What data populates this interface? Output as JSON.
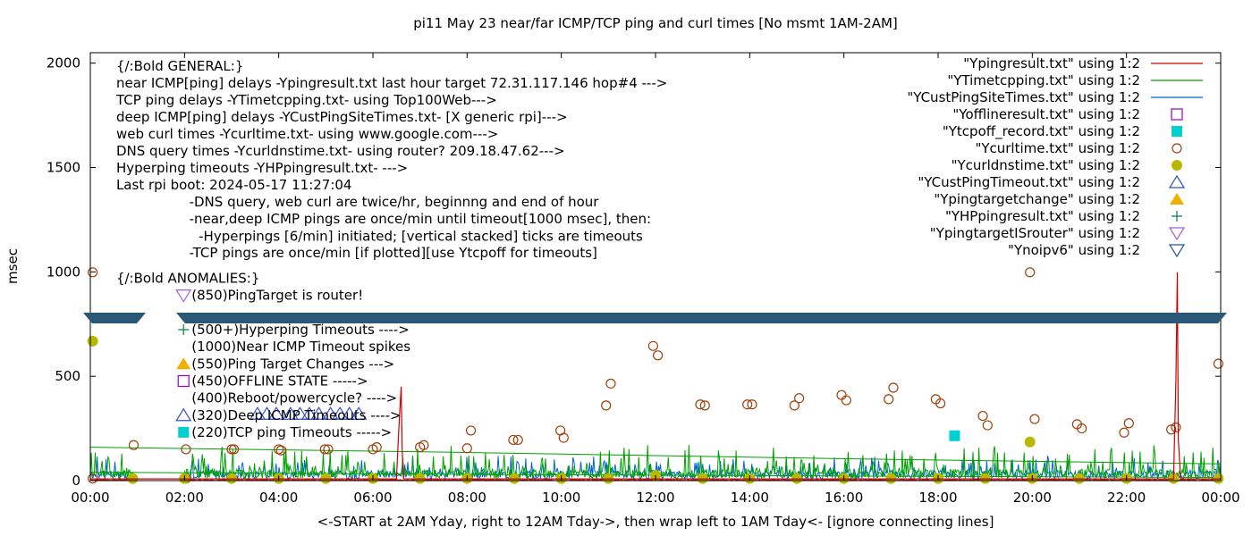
{
  "chart_data": {
    "type": "line",
    "title": "pi11 May 23  near/far ICMP/TCP ping and curl times [No msmt 1AM-2AM]",
    "xlabel": "<-START at 2AM Yday, right to 12AM Tday->, then wrap left to 1AM Tday<- [ignore connecting lines]",
    "ylabel": "msec",
    "xlim": [
      0,
      24
    ],
    "ylim": [
      0,
      2050
    ],
    "x_ticks": [
      0,
      2,
      4,
      6,
      8,
      10,
      12,
      14,
      16,
      18,
      20,
      22,
      24
    ],
    "x_tick_labels": [
      "00:00",
      "02:00",
      "04:00",
      "06:00",
      "08:00",
      "10:00",
      "12:00",
      "14:00",
      "16:00",
      "18:00",
      "20:00",
      "22:00",
      "00:00"
    ],
    "y_ticks": [
      0,
      500,
      1000,
      1500,
      2000
    ],
    "y_tick_labels": [
      "0",
      "500",
      "1000",
      "1500",
      "2000"
    ],
    "grid": false,
    "legend_position": "top-right",
    "legend": [
      {
        "label": "\"Ypingresult.txt\" using 1:2",
        "marker": "line",
        "color": "#cc0000"
      },
      {
        "label": "\"YTimetcpping.txt\" using 1:2",
        "marker": "line",
        "color": "#00a000"
      },
      {
        "label": "\"YCustPingSiteTimes.txt\" using 1:2",
        "marker": "line",
        "color": "#0066cc"
      },
      {
        "label": "\"Yofflineresult.txt\" using 1:2",
        "marker": "square-open",
        "color": "#9400d3"
      },
      {
        "label": "\"Ytcpoff_record.txt\" using 1:2",
        "marker": "square-filled",
        "color": "#00d0d0"
      },
      {
        "label": "\"Ycurltime.txt\" using 1:2",
        "marker": "circle-open",
        "color": "#a0400a"
      },
      {
        "label": "\"Ycurldnstime.txt\" using 1:2",
        "marker": "circle-filled",
        "color": "#b8b800"
      },
      {
        "label": "\"YCustPingTimeout.txt\" using 1:2",
        "marker": "triangle-up-open",
        "color": "#3050c8"
      },
      {
        "label": "\"Ypingtargetchange\" using 1:2",
        "marker": "triangle-up-filled",
        "color": "#f0b000"
      },
      {
        "label": "\"YHPpingresult.txt\" using 1:2",
        "marker": "plus",
        "color": "#008040"
      },
      {
        "label": "\"YpingtargetISrouter\" using 1:2",
        "marker": "triangle-down-open",
        "color": "#a060e0"
      },
      {
        "label": "\"Ynoipv6\" using 1:2",
        "marker": "triangle-down-open",
        "color": "#2050a0"
      }
    ],
    "annotations": [
      {
        "text": "{/:Bold GENERAL:}",
        "x": 0.55,
        "y": 1965
      },
      {
        "text": "near ICMP[ping] delays -Ypingresult.txt last hour target 72.31.117.146 hop#4 --->",
        "x": 0.55,
        "y": 1884
      },
      {
        "text": "TCP ping delays -YTimetcpping.txt- using Top100Web--->",
        "x": 0.55,
        "y": 1802
      },
      {
        "text": "deep ICMP[ping] delays -YCustPingSiteTimes.txt- [X generic rpi]--->",
        "x": 0.55,
        "y": 1721
      },
      {
        "text": "web curl times -Ycurltime.txt- using www.google.com--->",
        "x": 0.55,
        "y": 1639
      },
      {
        "text": "DNS query times -Ycurldnstime.txt- using router? 209.18.47.62--->",
        "x": 0.55,
        "y": 1558
      },
      {
        "text": "Hyperping timeouts -YHPpingresult.txt- --->",
        "x": 0.55,
        "y": 1476
      },
      {
        "text": "Last rpi boot: 2024-05-17 11:27:04",
        "x": 0.55,
        "y": 1395
      },
      {
        "text": "-DNS query, web curl are twice/hr, beginnng and end of hour",
        "x": 2.1,
        "y": 1313
      },
      {
        "text": "-near,deep ICMP pings are once/min until timeout[1000 msec], then:",
        "x": 2.1,
        "y": 1232
      },
      {
        "text": "-Hyperpings [6/min] initiated; [vertical stacked] ticks are timeouts",
        "x": 2.3,
        "y": 1150
      },
      {
        "text": "-TCP pings are once/min [if plotted][use Ytcpoff for timeouts]",
        "x": 2.1,
        "y": 1069
      },
      {
        "text": "{/:Bold ANOMALIES:}",
        "x": 0.55,
        "y": 948
      },
      {
        "text": "(850)PingTarget is router!",
        "x": 2.15,
        "y": 866,
        "marker": "triangle-down-open",
        "marker_color": "#a060e0"
      },
      {
        "text": "(500+)Hyperping Timeouts ---->",
        "x": 2.15,
        "y": 702,
        "marker": "plus",
        "marker_color": "#008040"
      },
      {
        "text": "(1000)Near ICMP Timeout spikes",
        "x": 2.15,
        "y": 620
      },
      {
        "text": "(550)Ping Target Changes --->",
        "x": 2.15,
        "y": 538,
        "marker": "triangle-up-filled",
        "marker_color": "#f0b000"
      },
      {
        "text": "(450)OFFLINE STATE ----->",
        "x": 2.15,
        "y": 456,
        "marker": "square-open",
        "marker_color": "#9400d3"
      },
      {
        "text": "(400)Reboot/powercycle? ---->",
        "x": 2.15,
        "y": 374
      },
      {
        "text": "(320)Deep ICMP Timeouts ---->",
        "x": 2.15,
        "y": 292,
        "marker": "triangle-up-open",
        "marker_color": "#3050c8"
      },
      {
        "text": "(220)TCP ping Timeouts ----->",
        "x": 2.15,
        "y": 210,
        "marker": "square-filled",
        "marker_color": "#00d0d0"
      }
    ],
    "series": [
      {
        "name": "\"Ycurltime.txt\" using 1:2",
        "marker": "circle-open",
        "color": "#a0400a",
        "x": [
          0.05,
          0.05,
          0.92,
          2.03,
          2.03,
          3.0,
          3.05,
          4.0,
          4.05,
          4.98,
          5.05,
          6.0,
          6.08,
          7.0,
          7.08,
          8.0,
          8.08,
          8.98,
          9.08,
          9.98,
          10.05,
          10.95,
          11.05,
          11.95,
          12.05,
          12.95,
          13.05,
          13.95,
          14.05,
          14.95,
          15.05,
          15.95,
          16.05,
          16.95,
          17.05,
          17.95,
          18.05,
          18.95,
          19.05,
          19.95,
          20.05,
          20.95,
          21.05,
          21.95,
          22.05,
          22.95,
          23.05,
          23.95
        ],
        "y": [
          998,
          10,
          170,
          10,
          150,
          150,
          150,
          150,
          145,
          150,
          150,
          150,
          160,
          160,
          170,
          155,
          240,
          195,
          195,
          240,
          205,
          360,
          465,
          645,
          600,
          365,
          360,
          365,
          365,
          360,
          395,
          410,
          385,
          390,
          445,
          390,
          370,
          310,
          265,
          998,
          295,
          270,
          250,
          230,
          275,
          245,
          255,
          560
        ]
      },
      {
        "name": "\"Ycurldnstime.txt\" using 1:2",
        "marker": "circle-filled",
        "color": "#b8b800",
        "x": [
          0.05,
          0.9,
          2.0,
          3.0,
          4.0,
          5.0,
          6.0,
          7.0,
          8.0,
          9.0,
          10.0,
          11.0,
          12.0,
          13.0,
          14.0,
          15.0,
          16.0,
          17.0,
          18.0,
          19.0,
          19.95,
          20.0,
          21.0,
          22.0,
          23.0,
          23.95
        ],
        "y": [
          668,
          10,
          10,
          10,
          10,
          10,
          10,
          10,
          10,
          10,
          10,
          10,
          25,
          10,
          10,
          10,
          10,
          10,
          10,
          10,
          185,
          10,
          10,
          10,
          10,
          10
        ]
      },
      {
        "name": "\"Ytcpoff_record.txt\" using 1:2",
        "marker": "square-filled",
        "color": "#00d0d0",
        "x": [
          18.35
        ],
        "y": [
          215
        ]
      },
      {
        "name": "\"YCustPingTimeout.txt\" using 1:2",
        "marker": "triangle-up-open",
        "color": "#3050c8",
        "x": [
          3.55,
          3.75,
          3.95,
          4.25,
          4.45,
          4.65,
          4.85,
          5.1,
          5.3,
          5.5,
          5.7
        ],
        "y": [
          320,
          320,
          320,
          320,
          320,
          320,
          320,
          320,
          320,
          320,
          320
        ]
      },
      {
        "name": "\"Ypingresult.txt\" using 1:2",
        "marker": "line",
        "color": "#cc0000",
        "x": [
          0,
          6.5,
          6.55,
          6.6,
          6.62,
          6.65,
          6.7,
          23.0,
          23.05,
          23.08,
          23.1,
          23.15,
          24
        ],
        "y": [
          8,
          8,
          250,
          450,
          150,
          8,
          8,
          8,
          500,
          998,
          200,
          8,
          8
        ]
      }
    ]
  }
}
